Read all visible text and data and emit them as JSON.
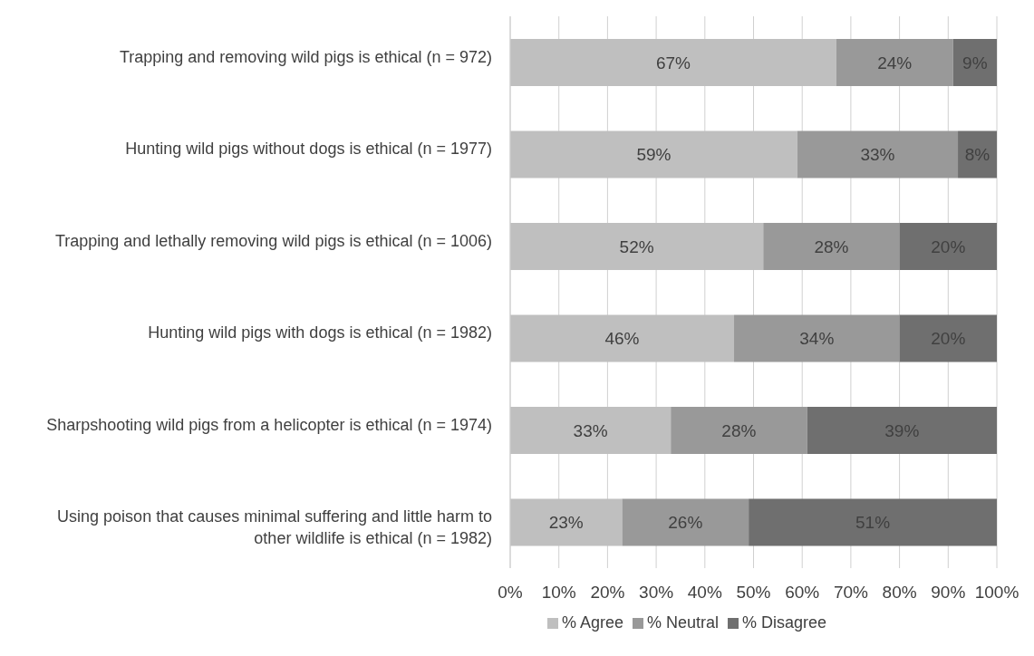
{
  "chart_data": {
    "type": "bar",
    "orientation": "horizontal",
    "stacked": true,
    "categories": [
      "Trapping and removing wild pigs is ethical (n = 972)",
      "Hunting wild pigs without dogs is ethical (n = 1977)",
      "Trapping and lethally removing wild pigs is ethical (n = 1006)",
      "Hunting wild pigs with dogs is ethical (n = 1982)",
      "Sharpshooting wild pigs from a helicopter is ethical (n = 1974)",
      "Using poison that causes minimal suffering and little harm to other wildlife is ethical (n = 1982)"
    ],
    "series": [
      {
        "name": "% Agree",
        "color": "#bfbfbf",
        "values": [
          67,
          59,
          52,
          46,
          33,
          23
        ],
        "value_labels": [
          "67%",
          "59%",
          "52%",
          "46%",
          "33%",
          "23%"
        ]
      },
      {
        "name": "% Neutral",
        "color": "#999999",
        "values": [
          24,
          33,
          28,
          34,
          28,
          26
        ],
        "value_labels": [
          "24%",
          "33%",
          "28%",
          "34%",
          "28%",
          "26%"
        ]
      },
      {
        "name": "% Disagree",
        "color": "#6f6f6f",
        "values": [
          9,
          8,
          20,
          20,
          39,
          51
        ],
        "value_labels": [
          "9%",
          "8%",
          "20%",
          "20%",
          "39%",
          "51%"
        ]
      }
    ],
    "xlim": [
      0,
      100
    ],
    "xticks": [
      {
        "value": 0,
        "label": "0%"
      },
      {
        "value": 10,
        "label": "10%"
      },
      {
        "value": 20,
        "label": "20%"
      },
      {
        "value": 30,
        "label": "30%"
      },
      {
        "value": 40,
        "label": "40%"
      },
      {
        "value": 50,
        "label": "50%"
      },
      {
        "value": 60,
        "label": "60%"
      },
      {
        "value": 70,
        "label": "70%"
      },
      {
        "value": 80,
        "label": "80%"
      },
      {
        "value": 90,
        "label": "90%"
      },
      {
        "value": 100,
        "label": "100%"
      }
    ],
    "grid": "x",
    "legend": "bottom"
  }
}
